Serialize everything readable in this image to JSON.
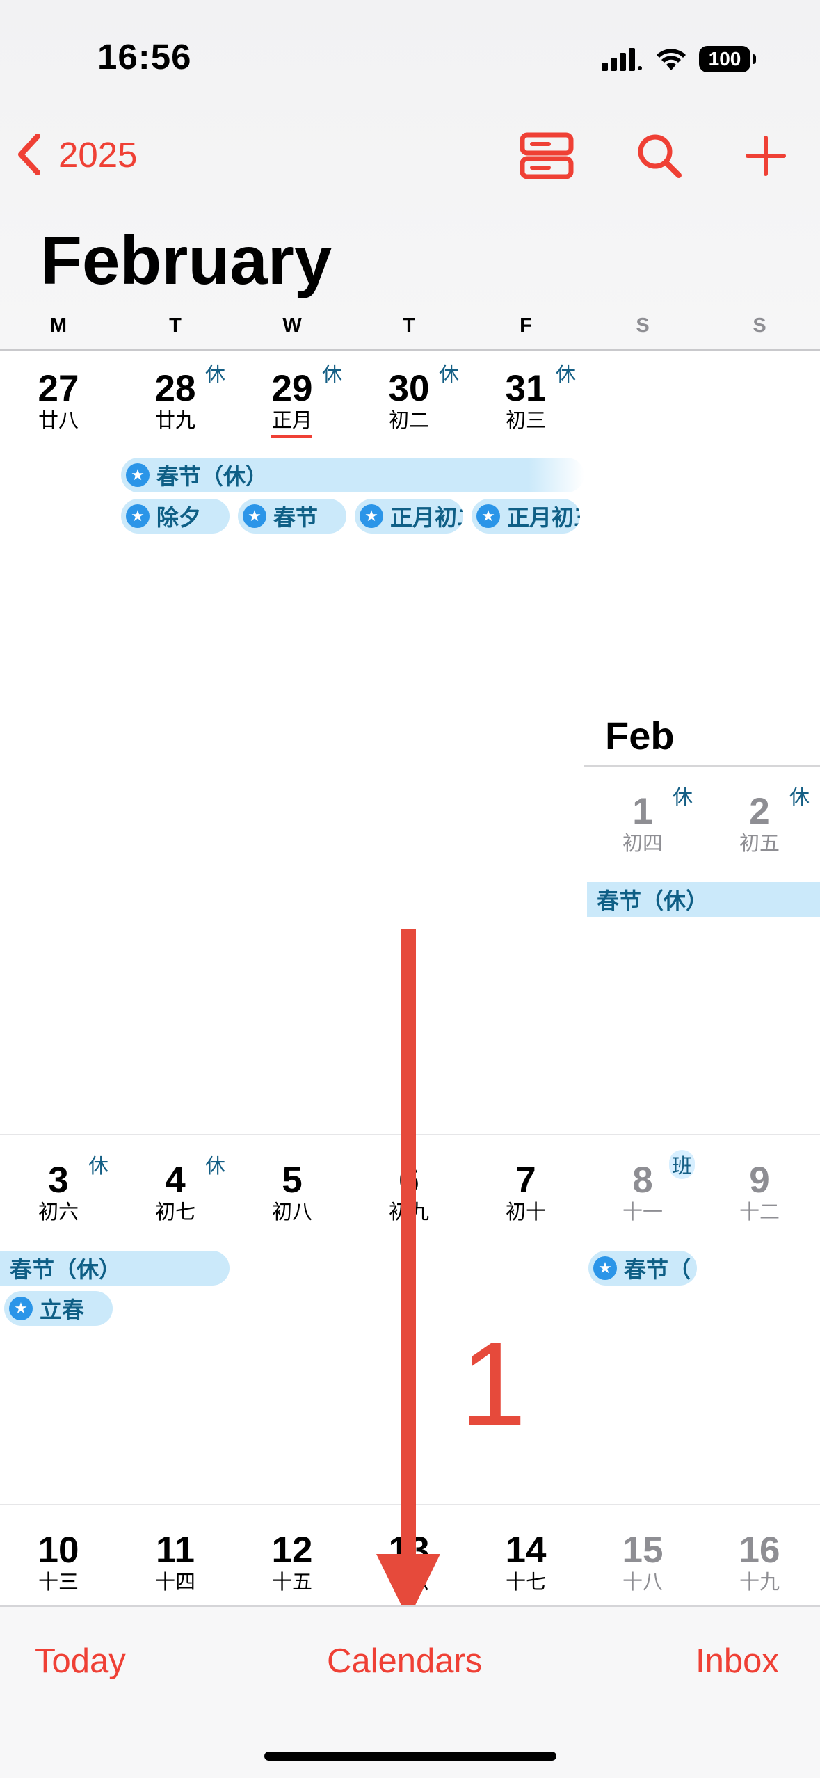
{
  "status": {
    "time": "16:56",
    "battery": "100"
  },
  "nav": {
    "back_label": "2025"
  },
  "month": {
    "title": "February"
  },
  "weekdays": [
    "M",
    "T",
    "W",
    "T",
    "F",
    "S",
    "S"
  ],
  "weeks": [
    {
      "days": [
        {
          "num": "27",
          "lunar": "廿八"
        },
        {
          "num": "28",
          "lunar": "廿九",
          "mark": "休"
        },
        {
          "num": "29",
          "lunar": "正月",
          "mark": "休"
        },
        {
          "num": "30",
          "lunar": "初二",
          "mark": "休"
        },
        {
          "num": "31",
          "lunar": "初三",
          "mark": "休"
        }
      ]
    },
    {
      "days": [
        {
          "num": "1",
          "lunar": "初四",
          "mark": "休"
        },
        {
          "num": "2",
          "lunar": "初五",
          "mark": "休"
        }
      ]
    },
    {
      "days": [
        {
          "num": "3",
          "lunar": "初六",
          "mark": "休"
        },
        {
          "num": "4",
          "lunar": "初七",
          "mark": "休"
        },
        {
          "num": "5",
          "lunar": "初八"
        },
        {
          "num": "6",
          "lunar": "初九"
        },
        {
          "num": "7",
          "lunar": "初十"
        },
        {
          "num": "8",
          "lunar": "十一",
          "mark": "班"
        },
        {
          "num": "9",
          "lunar": "十二"
        }
      ]
    },
    {
      "days": [
        {
          "num": "10",
          "lunar": "十三"
        },
        {
          "num": "11",
          "lunar": "十四"
        },
        {
          "num": "12",
          "lunar": "十五"
        },
        {
          "num": "13",
          "lunar": "十六"
        },
        {
          "num": "14",
          "lunar": "十七"
        },
        {
          "num": "15",
          "lunar": "十八"
        },
        {
          "num": "16",
          "lunar": "十九"
        }
      ]
    }
  ],
  "events": {
    "spring_festival_holiday": "春节（休）",
    "new_years_eve": "除夕",
    "spring_festival": "春节",
    "first_month_2": "正月初二",
    "first_month_3": "正月初三",
    "spring_holiday_cont": "春节（休）",
    "spring_holiday_week2": "春节（休）",
    "lichun": "立春",
    "spring_festival_sat": "春节（"
  },
  "mini_header": "Feb",
  "annotation": {
    "step": "1"
  },
  "tabbar": {
    "today": "Today",
    "calendars": "Calendars",
    "inbox": "Inbox"
  },
  "colors": {
    "accent": "#ef4035",
    "event_bg": "#cbe9fa",
    "event_text": "#0f5f86",
    "star": "#2b95e8",
    "arrow": "#e64a3b"
  }
}
